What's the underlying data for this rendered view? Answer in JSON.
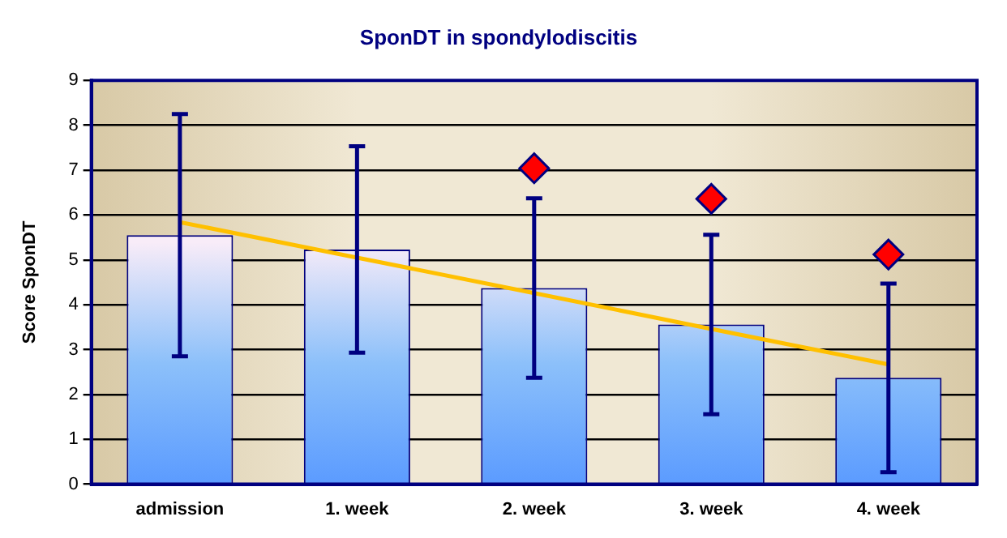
{
  "chart_data": {
    "type": "bar",
    "title": "SponDT in spondylodiscitis",
    "ylabel": "Score SponDT",
    "categories": [
      "admission",
      "1. week",
      "2. week",
      "3. week",
      "4. week"
    ],
    "series": [
      {
        "color": "#8cc0fa",
        "values": [
          5.55,
          5.23,
          4.37,
          3.56,
          2.37
        ],
        "errors": [
          2.7,
          2.3,
          2.0,
          2.0,
          2.1
        ]
      },
      {
        "type": "line",
        "color": "#ffc000",
        "values": [
          5.84,
          5.05,
          4.26,
          3.46,
          2.67
        ],
        "marker": "none"
      },
      {
        "type": "scatter",
        "color": "#ff0000",
        "values": [
          null,
          null,
          7.04,
          6.36,
          5.12
        ],
        "marker": "diamond"
      }
    ],
    "ylim": [
      0,
      9
    ],
    "yticks": [
      0,
      1,
      2,
      3,
      4,
      5,
      6,
      7,
      8,
      9
    ],
    "grid": "y",
    "legend": false
  }
}
